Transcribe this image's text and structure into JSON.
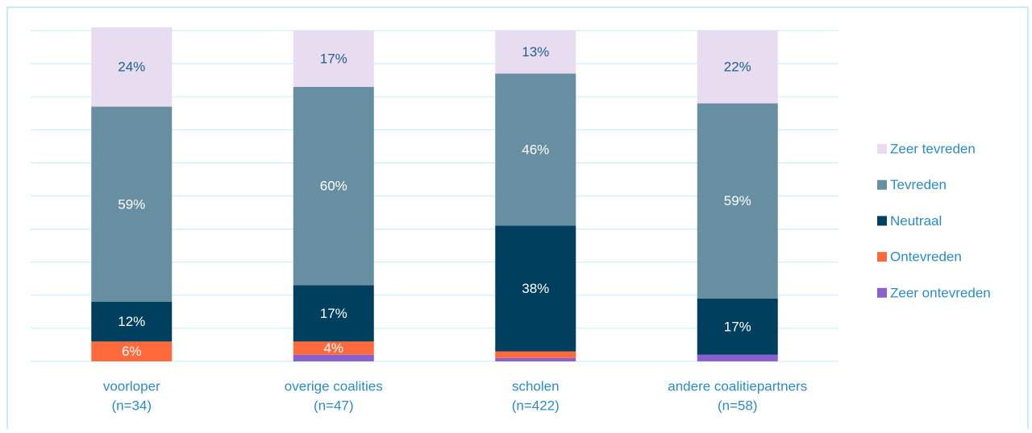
{
  "chart_data": {
    "type": "stacked-bar",
    "categories": [
      [
        "voorloper",
        "(n=34)"
      ],
      [
        "overige coalities",
        "(n=47)"
      ],
      [
        "scholen",
        "(n=422)"
      ],
      [
        "andere coalitiepartners",
        "(n=58)"
      ]
    ],
    "series": [
      {
        "name": "Zeer ontevreden",
        "color": "#8a5fd0",
        "label_color": "#ffffff",
        "values": [
          0,
          2,
          1,
          2
        ],
        "value_labels": [
          null,
          null,
          null,
          null
        ]
      },
      {
        "name": "Ontevreden",
        "color": "#ff6a3d",
        "label_color": "#ffffff",
        "values": [
          6,
          4,
          2,
          0
        ],
        "value_labels": [
          "6%",
          "4%",
          null,
          null
        ]
      },
      {
        "name": "Neutraal",
        "color": "#00405e",
        "label_color": "#ffffff",
        "values": [
          12,
          17,
          38,
          17
        ],
        "value_labels": [
          "12%",
          "17%",
          "38%",
          "17%"
        ]
      },
      {
        "name": "Tevreden",
        "color": "#678fa1",
        "label_color": "#ffffff",
        "values": [
          59,
          60,
          46,
          59
        ],
        "value_labels": [
          "59%",
          "60%",
          "46%",
          "59%"
        ]
      },
      {
        "name": "Zeer tevreden",
        "color": "#e8dcf1",
        "label_color": "#1f5f8e",
        "values": [
          24,
          17,
          13,
          22
        ],
        "value_labels": [
          "24%",
          "17%",
          "13%",
          "22%"
        ]
      }
    ],
    "ylim": [
      0,
      100
    ],
    "yticks": [
      0,
      10,
      20,
      30,
      40,
      50,
      60,
      70,
      80,
      90,
      100
    ],
    "grid": true,
    "legend": "right"
  }
}
